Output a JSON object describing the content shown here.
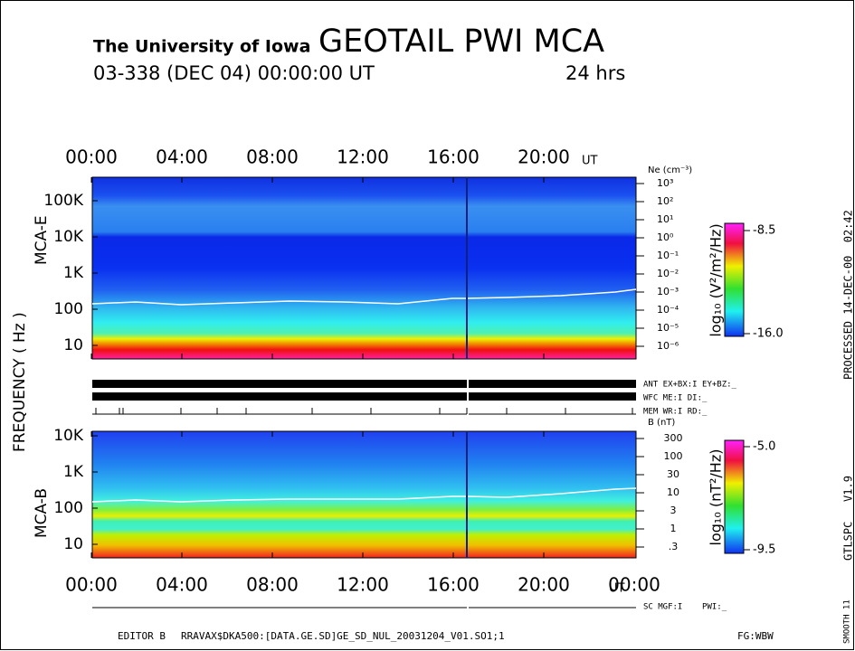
{
  "header": {
    "institution": "The University of Iowa",
    "title": "GEOTAIL PWI MCA",
    "date": "03-338 (DEC 04) 00:00:00 UT",
    "duration": "24 hrs"
  },
  "time_axis_top": {
    "labels": [
      "00:00",
      "04:00",
      "08:00",
      "12:00",
      "16:00",
      "20:00"
    ],
    "unit": "UT"
  },
  "time_axis_bottom": {
    "labels": [
      "00:00",
      "04:00",
      "08:00",
      "12:00",
      "16:00",
      "20:00",
      "00:00"
    ],
    "unit": "UT"
  },
  "axis_title": "FREQUENCY ( Hz )",
  "panels": [
    {
      "name": "MCA-E",
      "freq_labels": [
        "100K",
        "10K",
        "1K",
        "100",
        "10"
      ],
      "right_axis_title": "Ne (cm⁻³)",
      "right_labels": [
        "10³",
        "10²",
        "10¹",
        "10⁰",
        "10⁻¹",
        "10⁻²",
        "10⁻³",
        "10⁻⁴",
        "10⁻⁵",
        "10⁻⁶"
      ],
      "colorbar_title": "log₁₀ (V²/m²/Hz)",
      "colorbar_max": "-8.5",
      "colorbar_min": "-16.0"
    },
    {
      "name": "MCA-B",
      "freq_labels": [
        "10K",
        "1K",
        "100",
        "10"
      ],
      "right_axis_title": "B (nT)",
      "right_labels": [
        "300",
        "100",
        "30",
        "10",
        "3",
        "1",
        ".3"
      ],
      "colorbar_title": "log₁₀ (nT²/Hz)",
      "colorbar_max": "-5.0",
      "colorbar_min": "-9.5"
    }
  ],
  "status": [
    "ANT EX+BX:I  EY+BZ:_",
    "WFC ME:I     DI:_",
    "MEM WR:I     RD:_"
  ],
  "bottom_status": "SC MGF:I    PWI:_",
  "footer": {
    "editor": "EDITOR B",
    "file": "RRAVAX$DKA500:[DATA.GE.SD]GE_SD_NUL_20031204_V01.SO1;1",
    "fg": "FG:WBW"
  },
  "side": {
    "processed": "PROCESSED 14-DEC-00  02:42",
    "version": "GTLSPC   V1.9",
    "smooth": "SMOOTH 11"
  }
}
